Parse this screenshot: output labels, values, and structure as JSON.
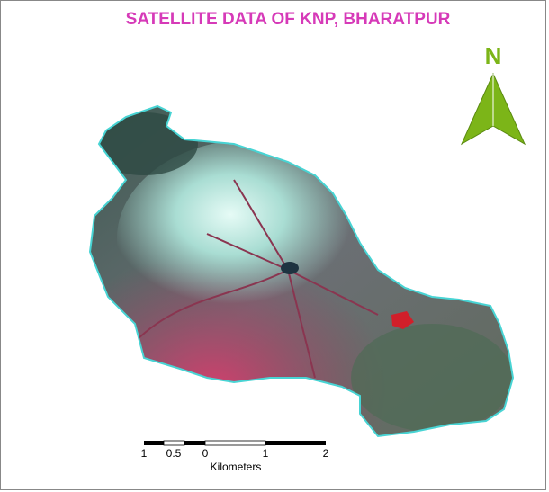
{
  "title": "SATELLITE DATA OF KNP, BHARATPUR",
  "north_label": "N",
  "scale_bar": {
    "labels": [
      "1",
      "0.5",
      "0",
      "1",
      "2"
    ],
    "unit": "Kilometers"
  }
}
